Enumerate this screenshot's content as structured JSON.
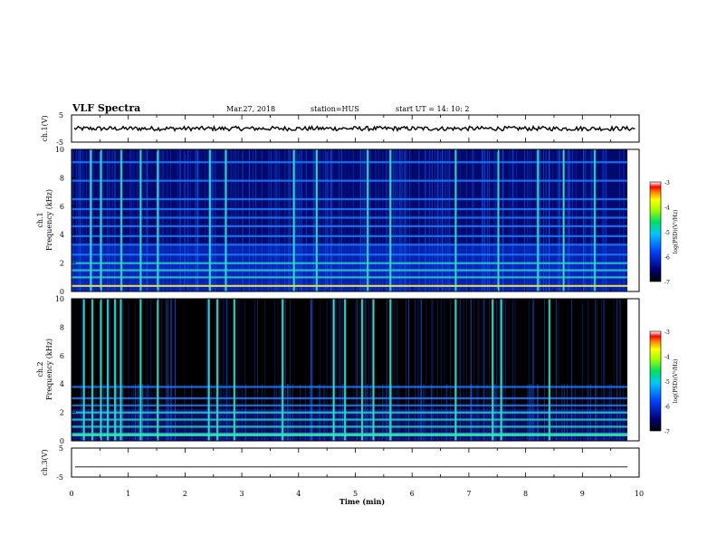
{
  "header": {
    "title": "VLF Spectra",
    "date": "Mar.27, 2018",
    "station": "station=HUS",
    "start": "start  UT =   14: 10: 2"
  },
  "colors": {
    "background": "#000000",
    "spectrum_low": "#000a6e",
    "spectrum_mid": "#1e6bff",
    "spectrum_high": "#34e6a6",
    "peak": "#ffff3a"
  },
  "chart_data": [
    {
      "type": "line",
      "panel": "ch1-waveform",
      "ylabel": "ch.1(V)",
      "ylim": [
        -5,
        5
      ],
      "y_ticks": [
        "5",
        "-5"
      ],
      "series": [
        {
          "level": 0,
          "style": "noisy"
        }
      ]
    },
    {
      "type": "heatmap",
      "panel": "ch1-spectrogram",
      "ylabel": "ch.1\nFrequency  (kHz)",
      "ylim": [
        0,
        10
      ],
      "y_ticks": [
        "0",
        "2",
        "4",
        "6",
        "8",
        "10"
      ],
      "xlim": [
        0,
        10
      ],
      "colorbar": {
        "label": "log(PSD)(V²/Hz)",
        "range": [
          -7,
          -3
        ],
        "ticks": [
          "-3",
          "-4",
          "-5",
          "-6",
          "-7"
        ]
      },
      "horizontal_lines_khz": [
        0.4,
        1.0,
        1.5,
        2.0,
        2.6,
        3.3,
        3.9,
        4.6,
        5.2,
        5.8,
        6.5,
        7.8,
        9.1
      ],
      "bright_vertical_times_min": [
        0.32,
        0.5,
        0.86,
        1.2,
        1.5,
        2.42,
        2.7,
        3.9,
        4.3,
        5.2,
        5.6,
        6.75,
        7.5,
        8.2,
        8.65,
        9.2
      ]
    },
    {
      "type": "heatmap",
      "panel": "ch2-spectrogram",
      "ylabel": "ch.2\nFrequency  (kHz)",
      "ylim": [
        0,
        10
      ],
      "y_ticks": [
        "0",
        "2",
        "4",
        "6",
        "8",
        "10"
      ],
      "xlim": [
        0,
        10
      ],
      "colorbar": {
        "label": "log(PSD)(V²/Hz)",
        "range": [
          -7,
          -3
        ],
        "ticks": [
          "-3",
          "-4",
          "-5",
          "-6",
          "-7"
        ]
      },
      "horizontal_lines_khz": [
        0.5,
        1.0,
        1.5,
        2.0,
        2.5,
        3.0,
        3.8
      ],
      "bright_vertical_times_min": [
        0.2,
        0.35,
        0.5,
        0.62,
        0.75,
        0.85,
        1.2,
        1.5,
        2.4,
        2.55,
        2.85,
        3.7,
        4.6,
        4.8,
        5.1,
        5.3,
        5.6,
        6.75,
        7.4,
        7.55,
        8.4
      ]
    },
    {
      "type": "line",
      "panel": "ch3-waveform",
      "ylabel": "ch.3(V)",
      "ylim": [
        -5,
        5
      ],
      "y_ticks": [
        "5",
        "-5"
      ],
      "series": [
        {
          "level": -1.5,
          "style": "flat"
        }
      ]
    }
  ],
  "xaxis": {
    "label": "Time  (min)",
    "ticks": [
      "0",
      "1",
      "2",
      "3",
      "4",
      "5",
      "6",
      "7",
      "8",
      "9",
      "10"
    ]
  }
}
